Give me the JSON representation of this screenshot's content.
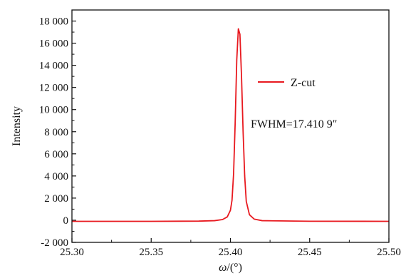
{
  "chart_data": {
    "type": "line",
    "xlabel": "ω/(°)",
    "ylabel": "Intensity",
    "xlim": [
      25.3,
      25.5
    ],
    "ylim": [
      -2000,
      19000
    ],
    "x_ticks": [
      25.3,
      25.35,
      25.4,
      25.45,
      25.5
    ],
    "x_tick_labels": [
      "25.30",
      "25.35",
      "25.40",
      "25.45",
      "25.50"
    ],
    "y_ticks": [
      -2000,
      0,
      2000,
      4000,
      6000,
      8000,
      10000,
      12000,
      14000,
      16000,
      18000
    ],
    "y_tick_labels": [
      "-2 000",
      "0",
      "2 000",
      "4 000",
      "6 000",
      "8 000",
      "10 000",
      "12 000",
      "14 000",
      "16 000",
      "18 000"
    ],
    "grid": false,
    "legend_position": "right",
    "series": [
      {
        "name": "Z-cut",
        "color": "#e8191f",
        "x": [
          25.3,
          25.35,
          25.38,
          25.39,
          25.395,
          25.398,
          25.4,
          25.401,
          25.402,
          25.403,
          25.404,
          25.405,
          25.406,
          25.407,
          25.408,
          25.409,
          25.41,
          25.412,
          25.415,
          25.42,
          25.45,
          25.5
        ],
        "y": [
          -100,
          -100,
          -80,
          -40,
          60,
          300,
          900,
          1800,
          4200,
          8800,
          14500,
          17300,
          16800,
          13000,
          8000,
          4000,
          1700,
          500,
          100,
          -40,
          -90,
          -100
        ]
      }
    ],
    "annotations": [
      "FWHM=17.410 9″"
    ]
  }
}
